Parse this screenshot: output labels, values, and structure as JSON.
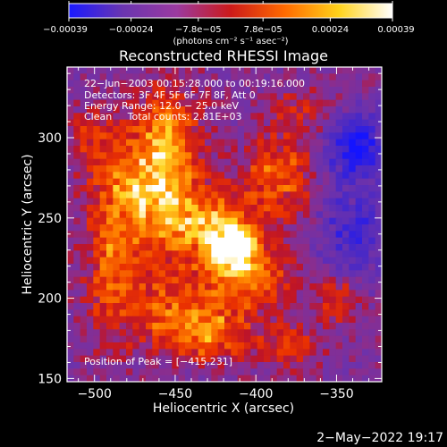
{
  "chart_data": {
    "type": "heatmap",
    "title": "Reconstructed RHESSI Image",
    "xlabel": "Heliocentric X (arcsec)",
    "ylabel": "Heliocentric Y (arcsec)",
    "xlim": [
      -517,
      -322
    ],
    "ylim": [
      148,
      344
    ],
    "xticks": [
      -500,
      -450,
      -400,
      -350
    ],
    "xtick_labels": [
      "−500",
      "−450",
      "−400",
      "−350"
    ],
    "yticks": [
      150,
      200,
      250,
      300
    ],
    "ytick_labels": [
      "150",
      "200",
      "250",
      "300"
    ],
    "colorbar": {
      "min": -0.00039,
      "max": 0.00039,
      "ticks": [
        -0.00039,
        -0.00024,
        -7.8e-05,
        7.8e-05,
        0.00024,
        0.00039
      ],
      "tick_labels": [
        "−0.00039",
        "−0.00024",
        "−7.8e−05",
        "7.8e−05",
        "0.00024",
        "0.00039"
      ],
      "unit_label": "(photons cm⁻² s⁻¹ asec⁻²)",
      "colors": [
        "#1a1aff",
        "#6a35b0",
        "#9b3aa0",
        "#cc1a1a",
        "#ff6a00",
        "#ffd21a",
        "#ffffff"
      ]
    },
    "info_lines": [
      "22−Jun−2003 00:15:28.000 to 00:19:16.000",
      "Detectors: 3F 4F 5F 6F 7F 8F, Att 0",
      "Energy Range: 12.0 − 25.0 keV",
      "Clean     Total counts: 2.81E+03"
    ],
    "peak_label": "Position of Peak = [−415,231]",
    "peak": [
      -415,
      231
    ],
    "grid": false,
    "blobs": [
      {
        "x": -415,
        "y": 231,
        "amp": 0.00042,
        "sx": 9,
        "sy": 9
      },
      {
        "x": -430,
        "y": 245,
        "amp": 0.0003,
        "sx": 18,
        "sy": 16
      },
      {
        "x": -470,
        "y": 265,
        "amp": 0.00028,
        "sx": 20,
        "sy": 26
      },
      {
        "x": -455,
        "y": 300,
        "amp": 0.00022,
        "sx": 14,
        "sy": 24
      },
      {
        "x": -385,
        "y": 275,
        "amp": 0.00022,
        "sx": 16,
        "sy": 18
      },
      {
        "x": -400,
        "y": 215,
        "amp": 0.00024,
        "sx": 16,
        "sy": 16
      },
      {
        "x": -490,
        "y": 215,
        "amp": 0.00018,
        "sx": 12,
        "sy": 30
      },
      {
        "x": -445,
        "y": 195,
        "amp": 0.00022,
        "sx": 24,
        "sy": 16
      },
      {
        "x": -350,
        "y": 200,
        "amp": 0.00018,
        "sx": 10,
        "sy": 12
      },
      {
        "x": -378,
        "y": 168,
        "amp": 0.00016,
        "sx": 12,
        "sy": 10
      },
      {
        "x": -430,
        "y": 175,
        "amp": 0.0002,
        "sx": 20,
        "sy": 10
      },
      {
        "x": -370,
        "y": 318,
        "amp": 0.00012,
        "sx": 14,
        "sy": 10
      },
      {
        "x": -500,
        "y": 300,
        "amp": 0.00012,
        "sx": 10,
        "sy": 16
      },
      {
        "x": -338,
        "y": 295,
        "amp": -0.00035,
        "sx": 12,
        "sy": 14
      },
      {
        "x": -340,
        "y": 240,
        "amp": -0.0002,
        "sx": 16,
        "sy": 22
      }
    ]
  },
  "footer": {
    "timestamp": "2−May−2022 19:17"
  }
}
